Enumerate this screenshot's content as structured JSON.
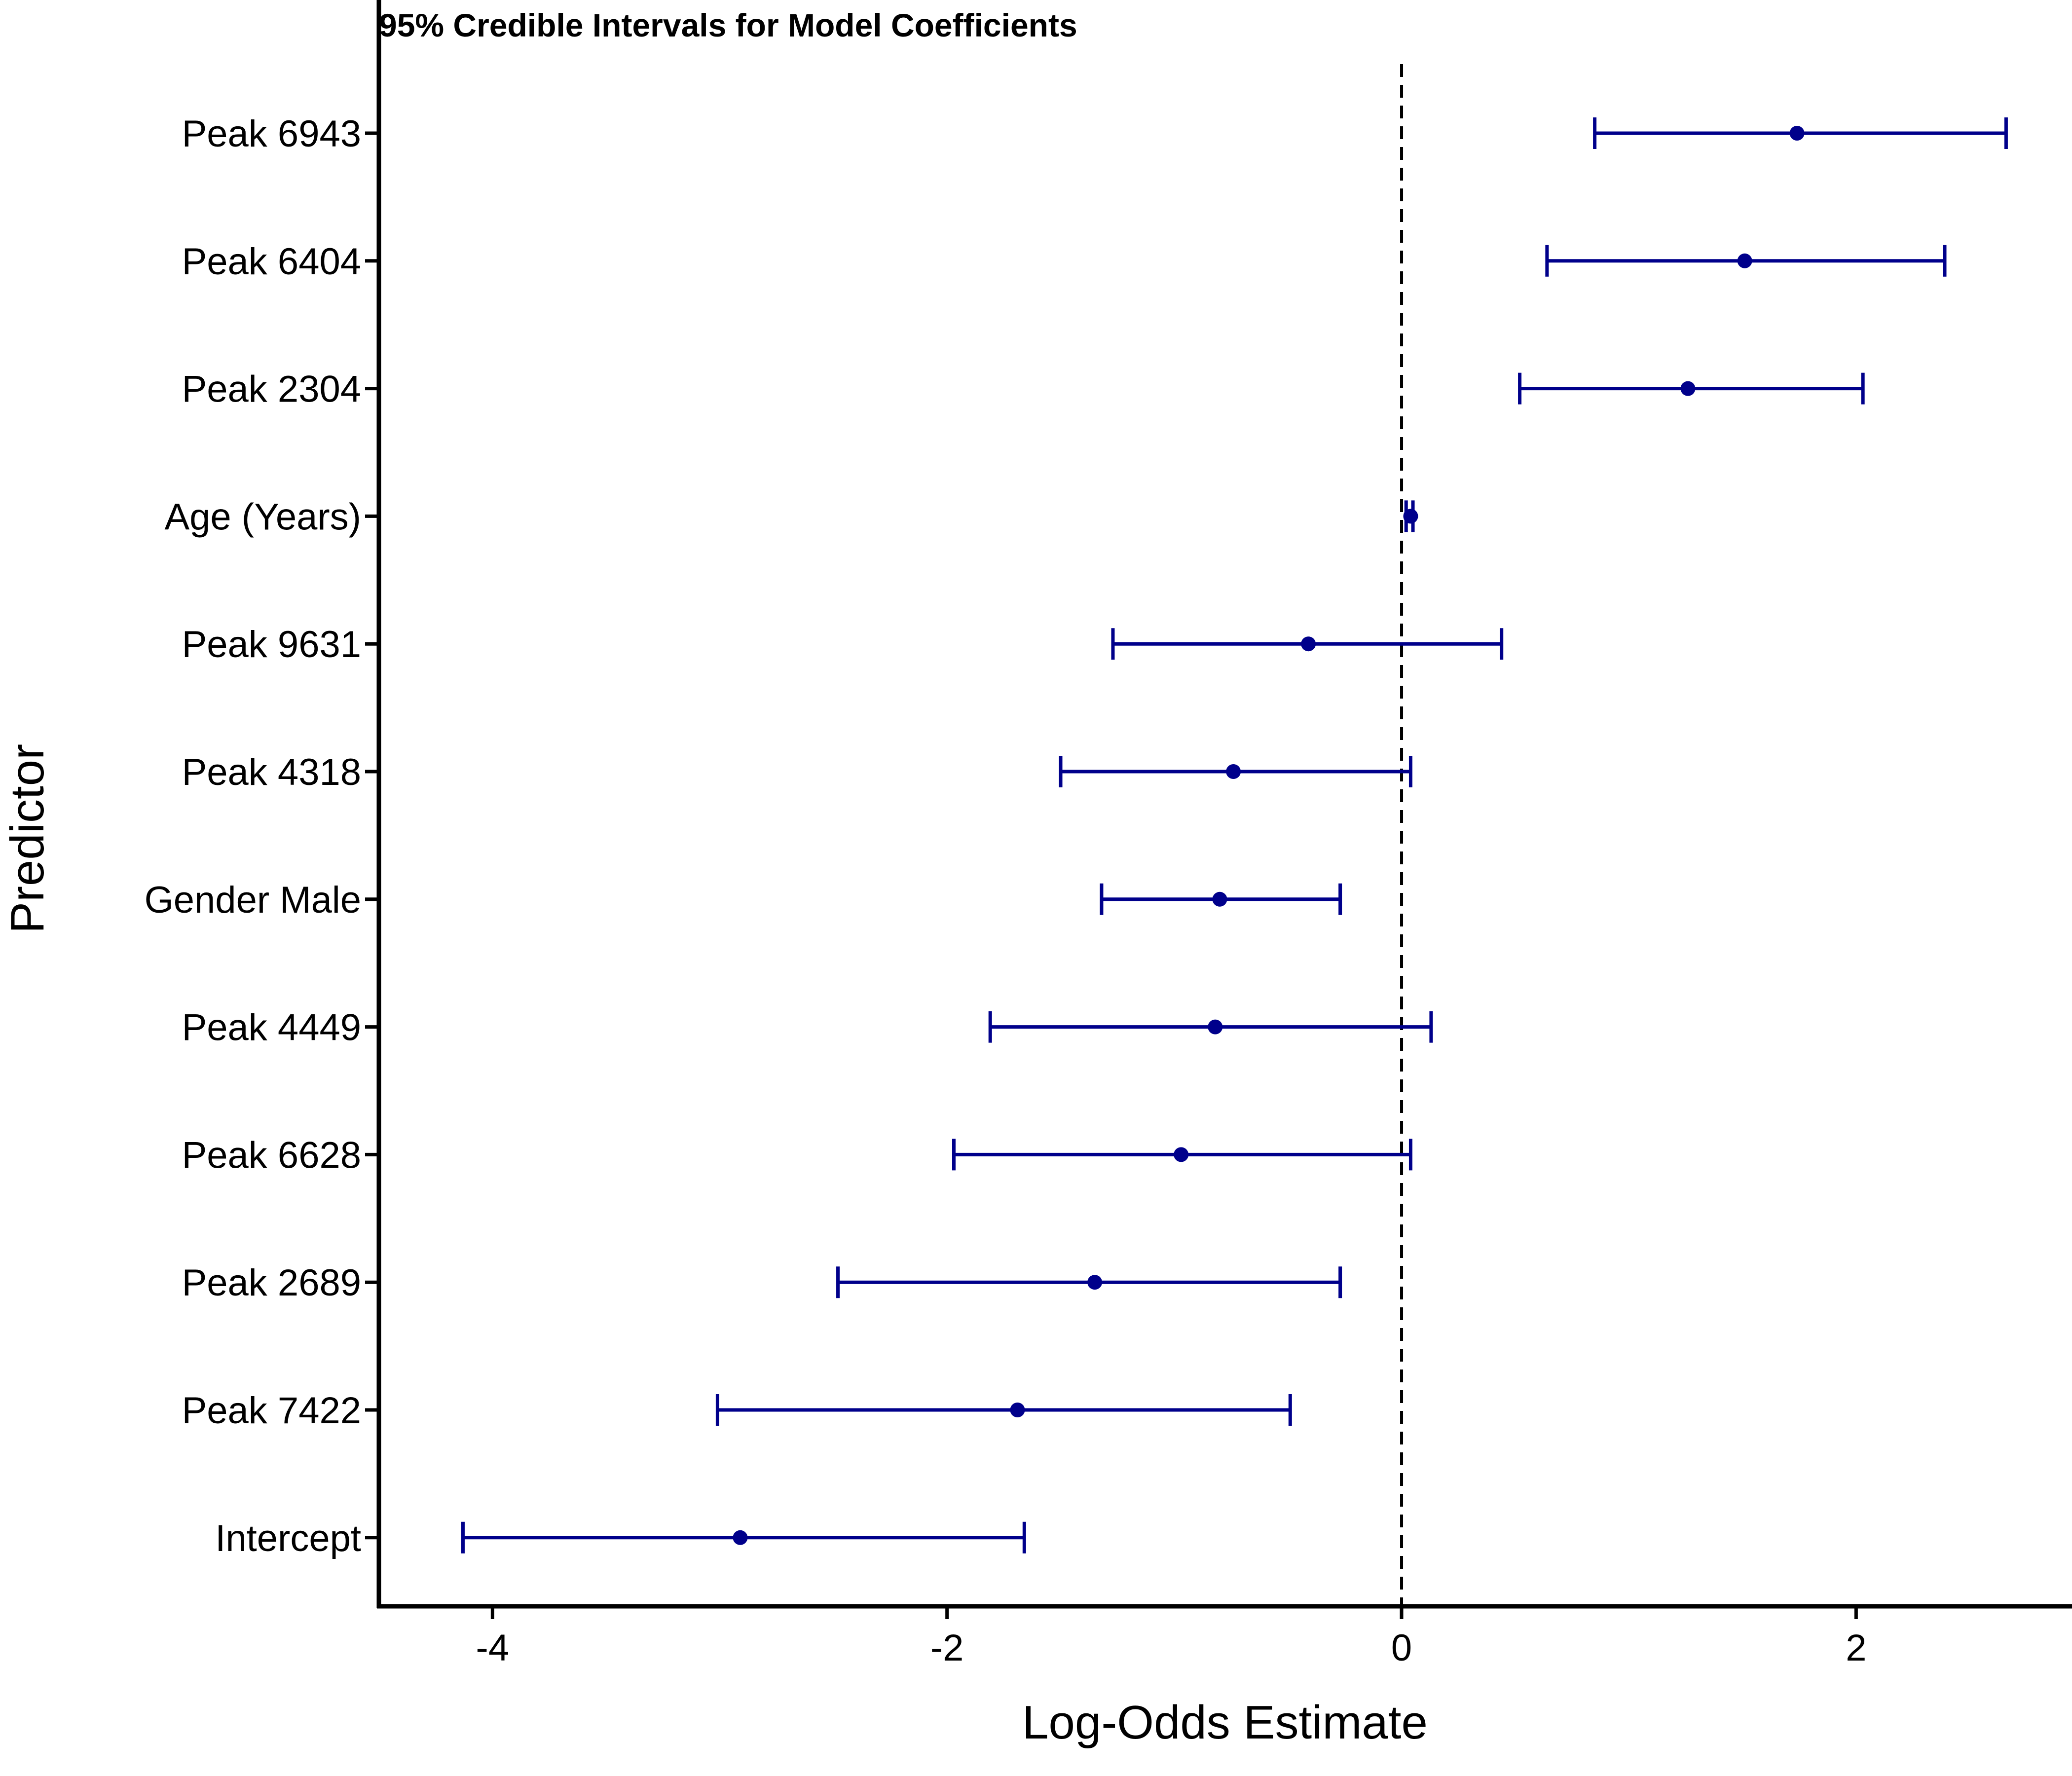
{
  "chart_data": {
    "type": "forest",
    "title": "95% Credible Intervals for Model Coefficients",
    "xlabel": "Log-Odds Estimate",
    "ylabel": "Predictor",
    "xlim": [
      -4.5,
      2.95
    ],
    "xticks": [
      -4,
      -2,
      0,
      2
    ],
    "xtick_labels": [
      "-4",
      "-2",
      "0",
      "2"
    ],
    "reference_line": {
      "x": 0,
      "style": "dashed"
    },
    "grid": false,
    "series_color": "#00008B",
    "predictors": [
      {
        "label": "Peak 6943",
        "estimate": 1.74,
        "lower": 0.85,
        "upper": 2.66
      },
      {
        "label": "Peak 6404",
        "estimate": 1.51,
        "lower": 0.64,
        "upper": 2.39
      },
      {
        "label": "Peak 2304",
        "estimate": 1.26,
        "lower": 0.52,
        "upper": 2.03
      },
      {
        "label": "Age (Years)",
        "estimate": 0.04,
        "lower": 0.02,
        "upper": 0.05
      },
      {
        "label": "Peak 9631",
        "estimate": -0.41,
        "lower": -1.27,
        "upper": 0.44
      },
      {
        "label": "Peak 4318",
        "estimate": -0.74,
        "lower": -1.5,
        "upper": 0.04
      },
      {
        "label": "Gender Male",
        "estimate": -0.8,
        "lower": -1.32,
        "upper": -0.27
      },
      {
        "label": "Peak 4449",
        "estimate": -0.82,
        "lower": -1.81,
        "upper": 0.13
      },
      {
        "label": "Peak 6628",
        "estimate": -0.97,
        "lower": -1.97,
        "upper": 0.04
      },
      {
        "label": "Peak 2689",
        "estimate": -1.35,
        "lower": -2.48,
        "upper": -0.27
      },
      {
        "label": "Peak 7422",
        "estimate": -1.69,
        "lower": -3.01,
        "upper": -0.49
      },
      {
        "label": "Intercept",
        "estimate": -2.91,
        "lower": -4.13,
        "upper": -1.66
      }
    ]
  }
}
